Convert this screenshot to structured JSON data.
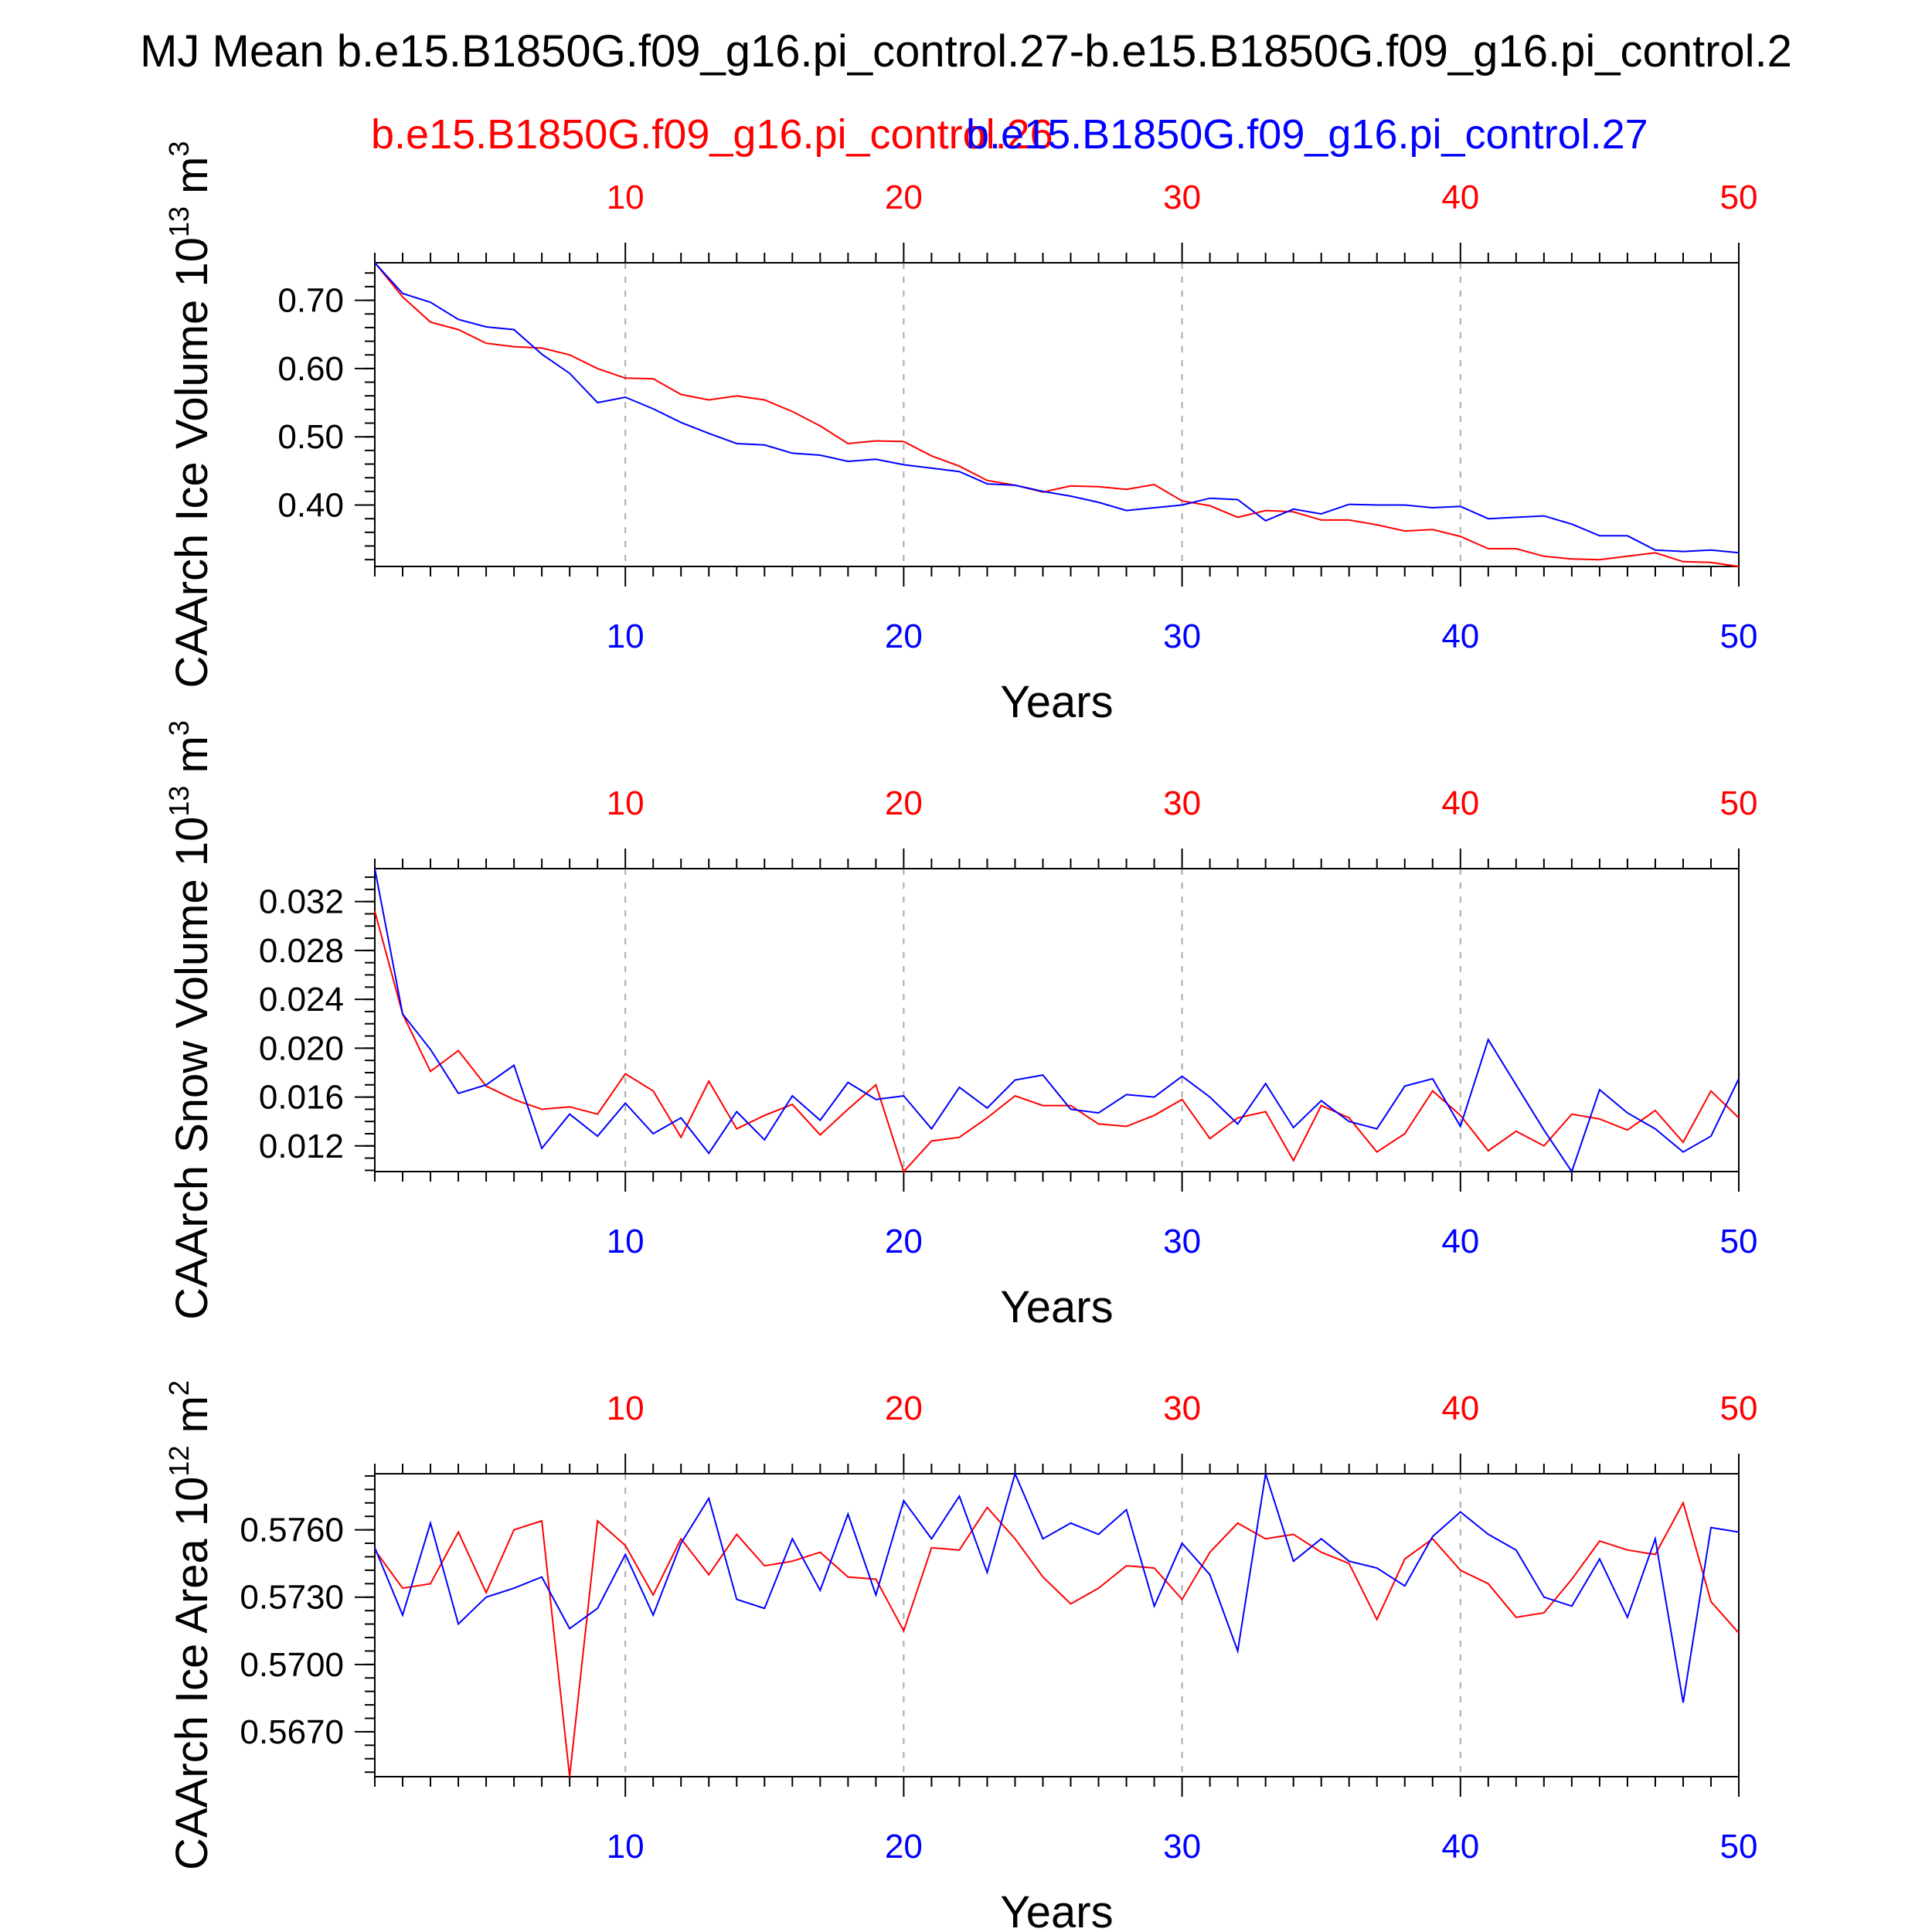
{
  "figure": {
    "title": "MJ Mean b.e15.B1850G.f09_g16.pi_control.27-b.e15.B1850G.f09_g16.pi_control.2",
    "legend_red": "b.e15.B1850G.f09_g16.pi_control.26",
    "legend_blue": "b.e15.B1850G.f09_g16.pi_control.27"
  },
  "colors": {
    "red": "#ff0000",
    "blue": "#0000ff",
    "axis": "#000000",
    "grid": "#aaaaaa"
  },
  "chart_data": [
    {
      "type": "line",
      "ylabel": "CAArch Ice Volume 10",
      "ylabel_exp": "13",
      "ylabel_unit": " m",
      "ylabel_unit_exp": "3",
      "xlabel": "Years",
      "xlim": [
        1,
        50
      ],
      "ylim": [
        0.31,
        0.755
      ],
      "grid": "vertical dashed at x ticks",
      "x_ticks": [
        10,
        20,
        30,
        40,
        50
      ],
      "y_ticks": [
        0.4,
        0.5,
        0.6,
        0.7
      ],
      "y_tick_labels": [
        "0.40",
        "0.50",
        "0.60",
        "0.70"
      ],
      "y_minor_step": 0.02,
      "x": [
        1,
        2,
        3,
        4,
        5,
        6,
        7,
        8,
        9,
        10,
        11,
        12,
        13,
        14,
        15,
        16,
        17,
        18,
        19,
        20,
        21,
        22,
        23,
        24,
        25,
        26,
        27,
        28,
        29,
        30,
        31,
        32,
        33,
        34,
        35,
        36,
        37,
        38,
        39,
        40,
        41,
        42,
        43,
        44,
        45,
        46,
        47,
        48,
        49,
        50
      ],
      "series": [
        {
          "name": "b.e15.B1850G.f09_g16.pi_control.26",
          "color": "red",
          "values": [
            0.755,
            0.705,
            0.668,
            0.657,
            0.637,
            0.632,
            0.63,
            0.62,
            0.6,
            0.586,
            0.585,
            0.562,
            0.554,
            0.56,
            0.554,
            0.537,
            0.516,
            0.49,
            0.494,
            0.493,
            0.472,
            0.457,
            0.436,
            0.429,
            0.419,
            0.428,
            0.427,
            0.423,
            0.43,
            0.406,
            0.399,
            0.382,
            0.392,
            0.39,
            0.378,
            0.378,
            0.371,
            0.362,
            0.364,
            0.354,
            0.336,
            0.336,
            0.325,
            0.321,
            0.32,
            0.325,
            0.33,
            0.317,
            0.316,
            0.31
          ]
        },
        {
          "name": "b.e15.B1850G.f09_g16.pi_control.27",
          "color": "blue",
          "values": [
            0.755,
            0.71,
            0.697,
            0.672,
            0.661,
            0.657,
            0.621,
            0.593,
            0.55,
            0.558,
            0.541,
            0.521,
            0.505,
            0.49,
            0.488,
            0.476,
            0.473,
            0.464,
            0.467,
            0.459,
            0.454,
            0.449,
            0.431,
            0.429,
            0.42,
            0.413,
            0.404,
            0.392,
            0.396,
            0.4,
            0.41,
            0.408,
            0.377,
            0.394,
            0.387,
            0.401,
            0.4,
            0.4,
            0.396,
            0.398,
            0.38,
            0.382,
            0.384,
            0.372,
            0.355,
            0.355,
            0.334,
            0.332,
            0.334,
            0.33
          ]
        }
      ]
    },
    {
      "type": "line",
      "ylabel": "CAArch Snow Volume 10",
      "ylabel_exp": "13",
      "ylabel_unit": " m",
      "ylabel_unit_exp": "3",
      "xlabel": "Years",
      "xlim": [
        1,
        50
      ],
      "ylim": [
        0.0099,
        0.0347
      ],
      "grid": "vertical dashed at x ticks",
      "x_ticks": [
        10,
        20,
        30,
        40,
        50
      ],
      "y_ticks": [
        0.012,
        0.016,
        0.02,
        0.024,
        0.028,
        0.032
      ],
      "y_tick_labels": [
        "0.012",
        "0.016",
        "0.020",
        "0.024",
        "0.028",
        "0.032"
      ],
      "y_minor_step": 0.001,
      "x": [
        1,
        2,
        3,
        4,
        5,
        6,
        7,
        8,
        9,
        10,
        11,
        12,
        13,
        14,
        15,
        16,
        17,
        18,
        19,
        20,
        21,
        22,
        23,
        24,
        25,
        26,
        27,
        28,
        29,
        30,
        31,
        32,
        33,
        34,
        35,
        36,
        37,
        38,
        39,
        40,
        41,
        42,
        43,
        44,
        45,
        46,
        47,
        48,
        49,
        50
      ],
      "series": [
        {
          "name": "b.e15.B1850G.f09_g16.pi_control.26",
          "color": "red",
          "values": [
            0.0312,
            0.0228,
            0.0181,
            0.0198,
            0.0169,
            0.0158,
            0.015,
            0.0152,
            0.0146,
            0.0179,
            0.0165,
            0.0127,
            0.0173,
            0.0134,
            0.0145,
            0.0154,
            0.0129,
            0.015,
            0.017,
            0.0099,
            0.0124,
            0.0127,
            0.0143,
            0.0161,
            0.0153,
            0.0153,
            0.0138,
            0.0136,
            0.0145,
            0.0158,
            0.0126,
            0.0143,
            0.0148,
            0.0108,
            0.0153,
            0.0143,
            0.0115,
            0.013,
            0.0165,
            0.0145,
            0.0116,
            0.0132,
            0.012,
            0.0146,
            0.0142,
            0.0133,
            0.0149,
            0.0123,
            0.0165,
            0.0143
          ]
        },
        {
          "name": "b.e15.B1850G.f09_g16.pi_control.27",
          "color": "blue",
          "values": [
            0.0347,
            0.0228,
            0.0199,
            0.0163,
            0.017,
            0.0186,
            0.0118,
            0.0146,
            0.0128,
            0.0155,
            0.013,
            0.0143,
            0.0114,
            0.0148,
            0.0125,
            0.0161,
            0.0141,
            0.0172,
            0.0158,
            0.0161,
            0.0134,
            0.0168,
            0.0151,
            0.0174,
            0.0178,
            0.015,
            0.0147,
            0.0162,
            0.016,
            0.0177,
            0.016,
            0.0138,
            0.0171,
            0.0135,
            0.0157,
            0.014,
            0.0134,
            0.0169,
            0.0175,
            0.0136,
            0.0207,
            0.017,
            0.0133,
            0.0099,
            0.0166,
            0.0147,
            0.0134,
            0.0115,
            0.0128,
            0.0175
          ]
        }
      ]
    },
    {
      "type": "line",
      "ylabel": "CAArch Ice Area 10",
      "ylabel_exp": "12",
      "ylabel_unit": " m",
      "ylabel_unit_exp": "2",
      "xlabel": "Years",
      "xlim": [
        1,
        50
      ],
      "ylim": [
        0.565,
        0.5785
      ],
      "grid": "vertical dashed at x ticks",
      "x_ticks": [
        10,
        20,
        30,
        40,
        50
      ],
      "y_ticks": [
        0.567,
        0.57,
        0.573,
        0.576
      ],
      "y_tick_labels": [
        "0.5670",
        "0.5700",
        "0.5730",
        "0.5760"
      ],
      "y_minor_step": 0.0006,
      "x": [
        1,
        2,
        3,
        4,
        5,
        6,
        7,
        8,
        9,
        10,
        11,
        12,
        13,
        14,
        15,
        16,
        17,
        18,
        19,
        20,
        21,
        22,
        23,
        24,
        25,
        26,
        27,
        28,
        29,
        30,
        31,
        32,
        33,
        34,
        35,
        36,
        37,
        38,
        39,
        40,
        41,
        42,
        43,
        44,
        45,
        46,
        47,
        48,
        49,
        50
      ],
      "series": [
        {
          "name": "b.e15.B1850G.f09_g16.pi_control.26",
          "color": "red",
          "values": [
            0.5751,
            0.5734,
            0.5736,
            0.5759,
            0.5732,
            0.576,
            0.5764,
            0.565,
            0.5764,
            0.5753,
            0.5731,
            0.5756,
            0.574,
            0.5758,
            0.5744,
            0.5746,
            0.575,
            0.5739,
            0.5738,
            0.5715,
            0.5752,
            0.5751,
            0.577,
            0.5756,
            0.5739,
            0.5727,
            0.5734,
            0.5744,
            0.5743,
            0.5729,
            0.575,
            0.5763,
            0.5756,
            0.5758,
            0.575,
            0.5745,
            0.572,
            0.5747,
            0.5756,
            0.5742,
            0.5736,
            0.5721,
            0.5723,
            0.5738,
            0.5755,
            0.5751,
            0.5749,
            0.5772,
            0.5728,
            0.5714
          ]
        },
        {
          "name": "b.e15.B1850G.f09_g16.pi_control.27",
          "color": "blue",
          "values": [
            0.5752,
            0.5722,
            0.5763,
            0.5718,
            0.573,
            0.5734,
            0.5739,
            0.5716,
            0.5725,
            0.5749,
            0.5722,
            0.5754,
            0.5774,
            0.5729,
            0.5725,
            0.5756,
            0.5733,
            0.5767,
            0.5731,
            0.5773,
            0.5756,
            0.5775,
            0.5741,
            0.5785,
            0.5756,
            0.5763,
            0.5758,
            0.5769,
            0.5726,
            0.5754,
            0.574,
            0.5706,
            0.5785,
            0.5746,
            0.5756,
            0.5746,
            0.5743,
            0.5735,
            0.5757,
            0.5768,
            0.5758,
            0.5751,
            0.573,
            0.5726,
            0.5747,
            0.5721,
            0.5756,
            0.5683,
            0.5761,
            0.5759
          ]
        }
      ]
    }
  ]
}
